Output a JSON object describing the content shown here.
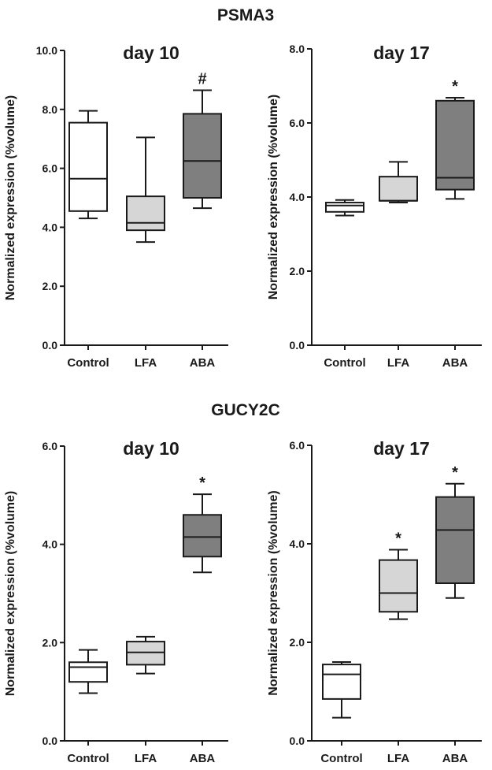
{
  "sections": [
    {
      "title": "PSMA3"
    },
    {
      "title": "GUCY2C"
    }
  ],
  "colors": {
    "Control": "#ffffff",
    "LFA": "#d6d6d6",
    "ABA": "#7f7f7f",
    "stroke": "#1a1a1a"
  },
  "chart_data": [
    {
      "type": "box",
      "section": "PSMA3",
      "title": "day 10",
      "ylabel": "Normalized expression (%volume)",
      "ylim": [
        0,
        10
      ],
      "yticks": [
        "0.0",
        "2.0",
        "4.0",
        "6.0",
        "8.0",
        "10.0"
      ],
      "categories": [
        "Control",
        "LFA",
        "ABA"
      ],
      "boxes": [
        {
          "category": "Control",
          "min": 4.3,
          "q1": 4.55,
          "median": 5.65,
          "q3": 7.55,
          "max": 7.95,
          "annotation": ""
        },
        {
          "category": "LFA",
          "min": 3.5,
          "q1": 3.9,
          "median": 4.15,
          "q3": 5.05,
          "max": 7.05,
          "annotation": ""
        },
        {
          "category": "ABA",
          "min": 4.65,
          "q1": 5.0,
          "median": 6.25,
          "q3": 7.85,
          "max": 8.65,
          "annotation": "#"
        }
      ]
    },
    {
      "type": "box",
      "section": "PSMA3",
      "title": "day 17",
      "ylabel": "Normalized expression (%volume)",
      "ylim": [
        0,
        8
      ],
      "yticks": [
        "0.0",
        "2.0",
        "4.0",
        "6.0",
        "8.0"
      ],
      "categories": [
        "Control",
        "LFA",
        "ABA"
      ],
      "boxes": [
        {
          "category": "Control",
          "min": 3.5,
          "q1": 3.6,
          "median": 3.77,
          "q3": 3.85,
          "max": 3.92,
          "annotation": ""
        },
        {
          "category": "LFA",
          "min": 3.85,
          "q1": 3.9,
          "median": 3.9,
          "q3": 4.55,
          "max": 4.95,
          "annotation": ""
        },
        {
          "category": "ABA",
          "min": 3.95,
          "q1": 4.2,
          "median": 4.52,
          "q3": 6.6,
          "max": 6.68,
          "annotation": "*"
        }
      ]
    },
    {
      "type": "box",
      "section": "GUCY2C",
      "title": "day 10",
      "ylabel": "Normalized expression (%volume)",
      "ylim": [
        0,
        6
      ],
      "yticks": [
        "0.0",
        "2.0",
        "4.0",
        "6.0"
      ],
      "categories": [
        "Control",
        "LFA",
        "ABA"
      ],
      "boxes": [
        {
          "category": "Control",
          "min": 0.97,
          "q1": 1.2,
          "median": 1.5,
          "q3": 1.6,
          "max": 1.85,
          "annotation": ""
        },
        {
          "category": "LFA",
          "min": 1.37,
          "q1": 1.55,
          "median": 1.8,
          "q3": 2.02,
          "max": 2.12,
          "annotation": ""
        },
        {
          "category": "ABA",
          "min": 3.43,
          "q1": 3.75,
          "median": 4.15,
          "q3": 4.6,
          "max": 5.02,
          "annotation": "*"
        }
      ]
    },
    {
      "type": "box",
      "section": "GUCY2C",
      "title": "day 17",
      "ylabel": "Normalized expression (%volume)",
      "ylim": [
        0,
        6
      ],
      "yticks": [
        "0.0",
        "2.0",
        "4.0",
        "6.0"
      ],
      "categories": [
        "Control",
        "LFA",
        "ABA"
      ],
      "boxes": [
        {
          "category": "Control",
          "min": 0.47,
          "q1": 0.85,
          "median": 1.35,
          "q3": 1.55,
          "max": 1.6,
          "annotation": ""
        },
        {
          "category": "LFA",
          "min": 2.47,
          "q1": 2.62,
          "median": 3.0,
          "q3": 3.67,
          "max": 3.88,
          "annotation": "*"
        },
        {
          "category": "ABA",
          "min": 2.9,
          "q1": 3.2,
          "median": 4.28,
          "q3": 4.95,
          "max": 5.22,
          "annotation": "*"
        }
      ]
    }
  ]
}
